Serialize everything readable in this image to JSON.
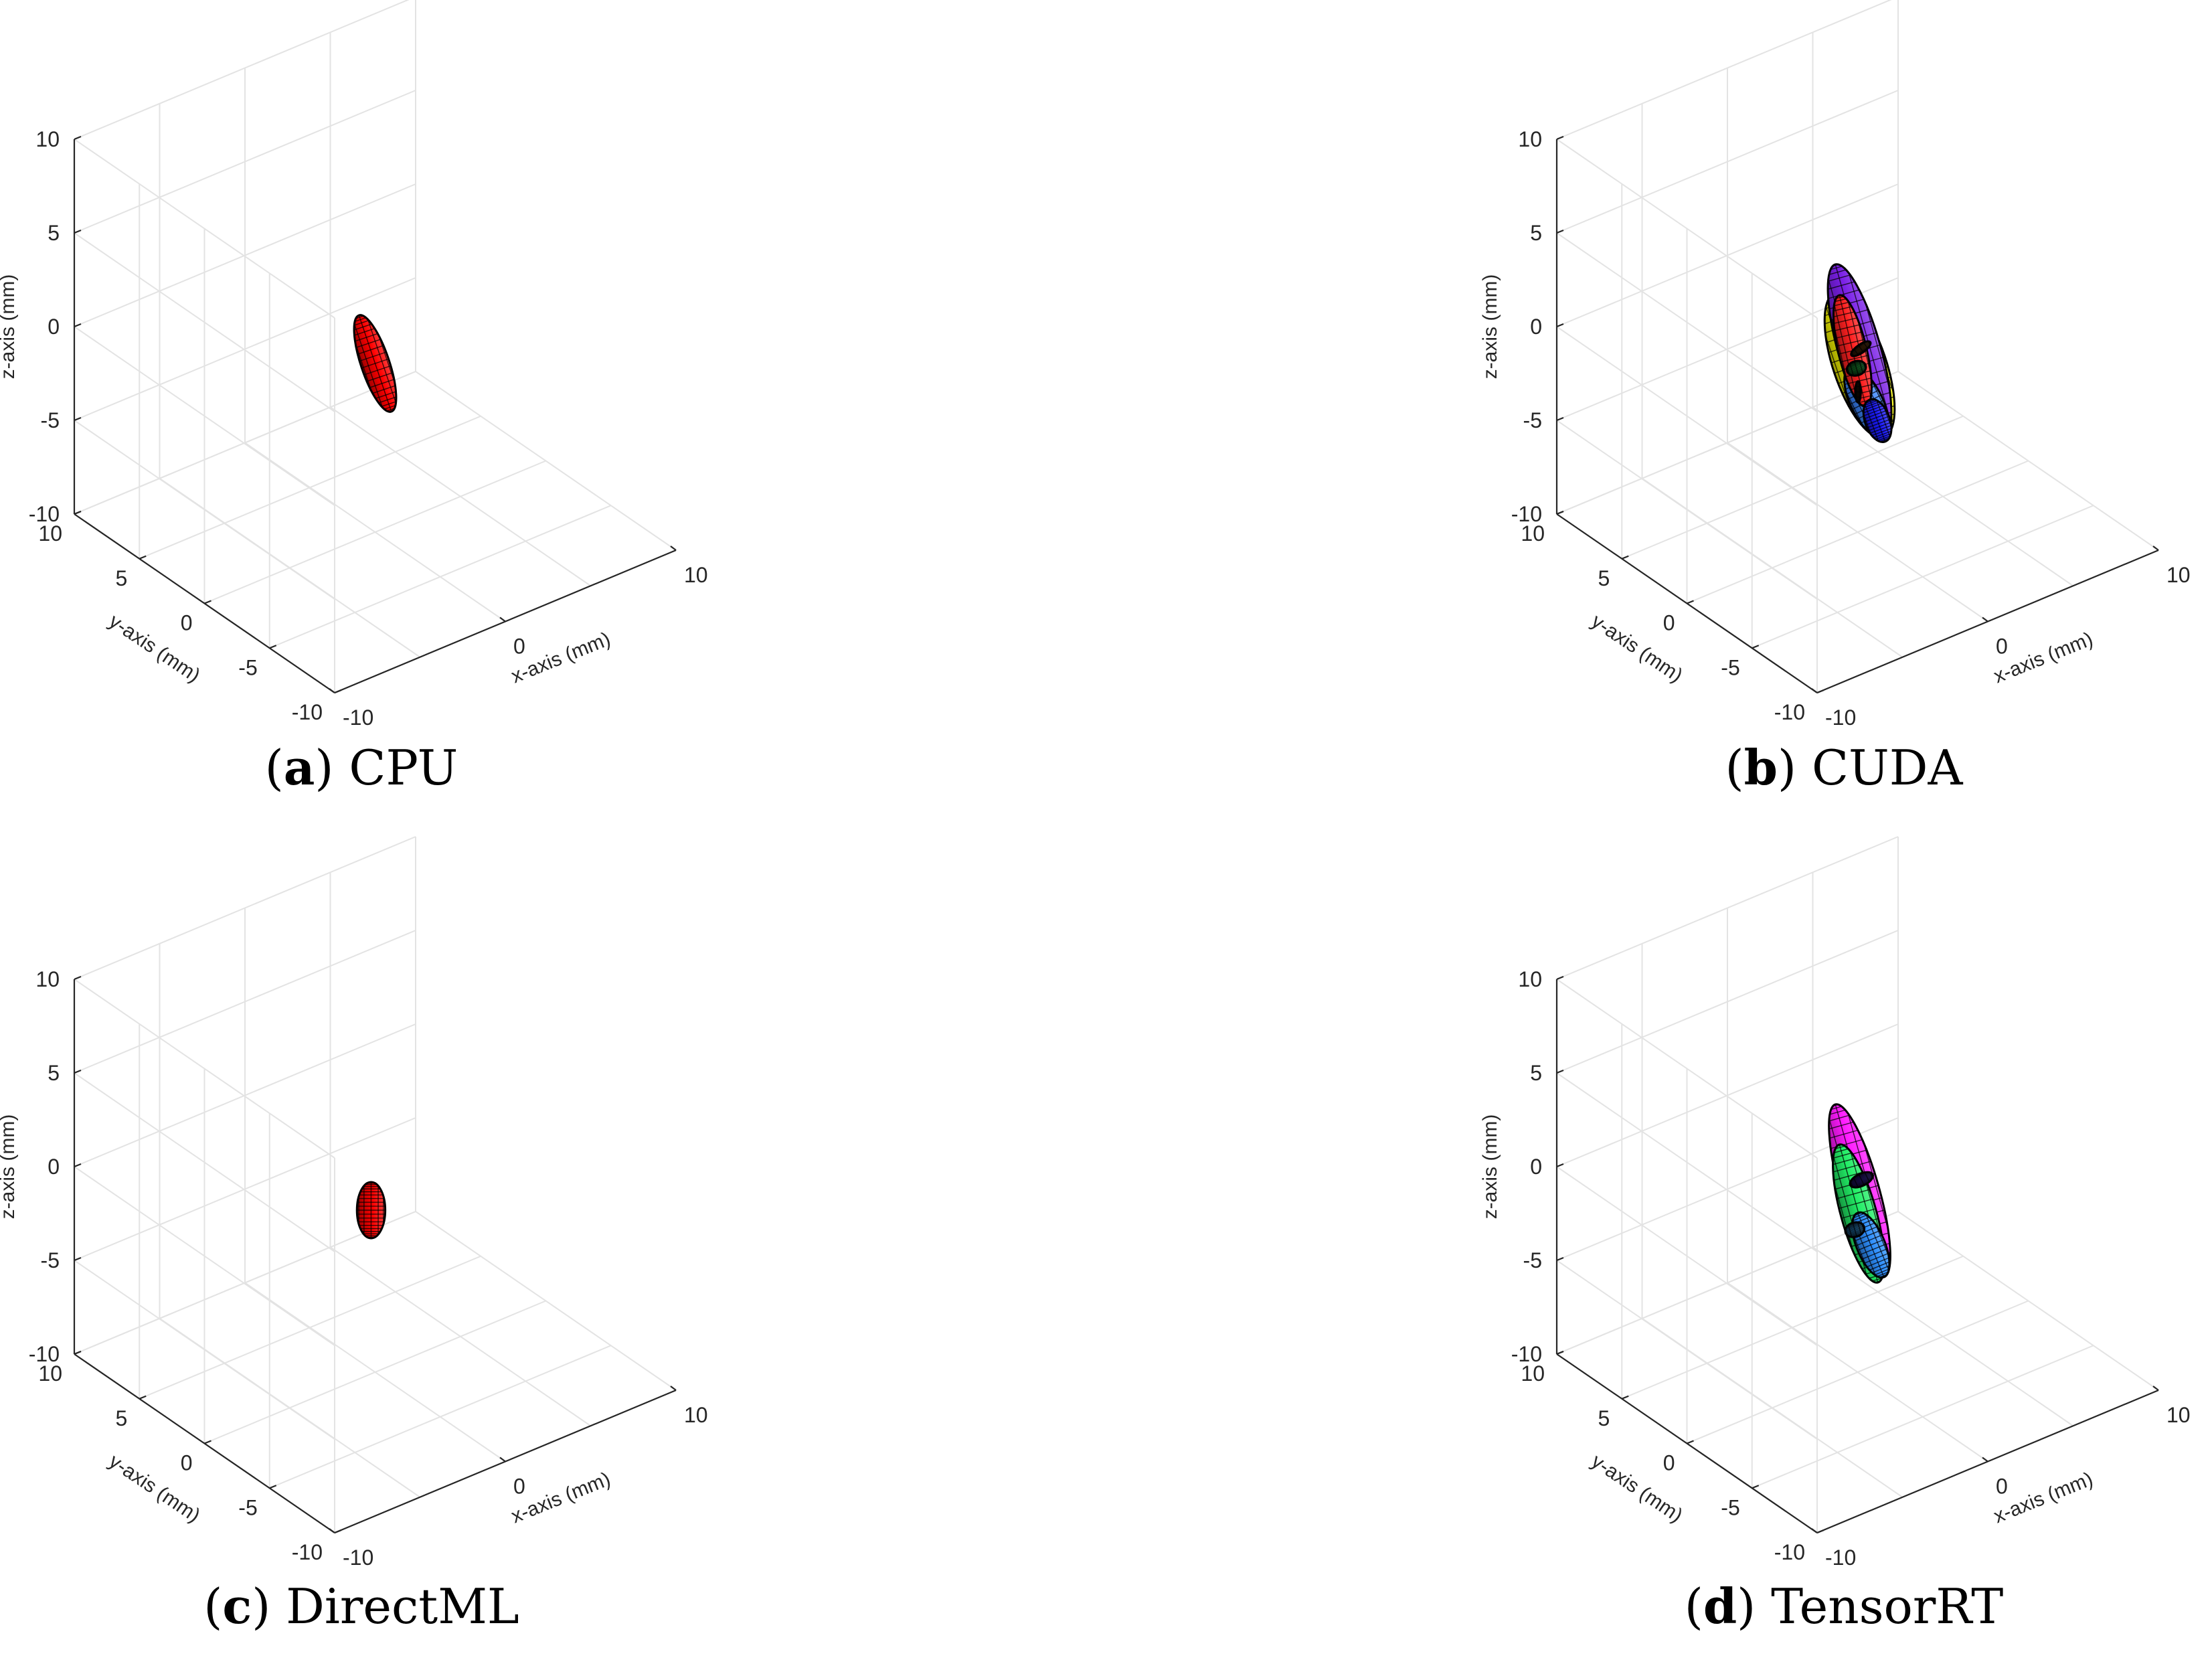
{
  "chart_data": [
    {
      "type": "ellipsoid-3d",
      "letter": "a",
      "title": "CPU",
      "xlabel": "x-axis (mm)",
      "ylabel": "y-axis (mm)",
      "zlabel": "z-axis (mm)",
      "xlim": [
        -10,
        10
      ],
      "ylim": [
        -10,
        10
      ],
      "zlim": [
        -10,
        10
      ],
      "xticks": [
        "-10",
        "0",
        "10"
      ],
      "yticks": [
        "-10",
        "-5",
        "0",
        "5",
        "10"
      ],
      "zticks": [
        "-10",
        "-5",
        "0",
        "5",
        "10"
      ],
      "grid": true,
      "ellipsoids": [
        {
          "color": "#ff0000",
          "start": [
            -4,
            -4,
            5
          ],
          "end": [
            4,
            4,
            -7
          ],
          "width_mm": 1.6
        }
      ]
    },
    {
      "type": "ellipsoid-3d",
      "letter": "b",
      "title": "CUDA",
      "xlabel": "x-axis (mm)",
      "ylabel": "y-axis (mm)",
      "zlabel": "z-axis (mm)",
      "xlim": [
        -10,
        10
      ],
      "ylim": [
        -10,
        10
      ],
      "zlim": [
        -10,
        10
      ],
      "xticks": [
        "-10",
        "0",
        "10"
      ],
      "yticks": [
        "-10",
        "-5",
        "0",
        "5",
        "10"
      ],
      "zticks": [
        "-10",
        "-5",
        "0",
        "5",
        "10"
      ],
      "grid": true,
      "ellipsoids": [
        {
          "color": "#ffff00",
          "start": [
            -5.5,
            -5.5,
            7.5
          ],
          "end": [
            6.5,
            6.5,
            -10.5
          ],
          "width_mm": 3.0
        },
        {
          "color": "#7a1fe6",
          "start": [
            -5.5,
            -5.5,
            9
          ],
          "end": [
            6.5,
            6.5,
            -10.5
          ],
          "width_mm": 2.4
        },
        {
          "color": "#3a86ff",
          "start": [
            -2,
            -2,
            0.5
          ],
          "end": [
            6.5,
            6.5,
            -10.5
          ],
          "width_mm": 1.8
        },
        {
          "color": "#ff2020",
          "start": [
            -4.5,
            -4.5,
            6.5
          ],
          "end": [
            2,
            2,
            -5
          ],
          "width_mm": 1.6
        },
        {
          "color": "#1a1aff",
          "start": [
            3,
            3,
            -5.5
          ],
          "end": [
            6.8,
            6.8,
            -11
          ],
          "width_mm": 1.4
        },
        {
          "color": "#22cc44",
          "start": [
            -0.8,
            -0.8,
            -0.2
          ],
          "end": [
            0.2,
            0.2,
            -1.8
          ],
          "width_mm": 1.1
        },
        {
          "color": "#ff8c1a",
          "start": [
            0.2,
            0.2,
            -0.2
          ],
          "end": [
            1.4,
            1.4,
            -1.6
          ],
          "width_mm": 1.3
        },
        {
          "color": "#e67300",
          "start": [
            -0.6,
            -0.6,
            -2
          ],
          "end": [
            0.8,
            0.8,
            -3.2
          ],
          "width_mm": 1.2
        }
      ]
    },
    {
      "type": "ellipsoid-3d",
      "letter": "c",
      "title": "DirectML",
      "xlabel": "x-axis (mm)",
      "ylabel": "y-axis (mm)",
      "zlabel": "z-axis (mm)",
      "xlim": [
        -10,
        10
      ],
      "ylim": [
        -10,
        10
      ],
      "zlim": [
        -10,
        10
      ],
      "xticks": [
        "-10",
        "0",
        "10"
      ],
      "yticks": [
        "-10",
        "-5",
        "0",
        "5",
        "10"
      ],
      "zticks": [
        "-10",
        "-5",
        "0",
        "5",
        "10"
      ],
      "grid": true,
      "ellipsoids": [
        {
          "color": "#ff0000",
          "start": [
            -1,
            -1,
            1
          ],
          "end": [
            -1,
            -1,
            -2
          ],
          "width_mm": 1.6
        }
      ]
    },
    {
      "type": "ellipsoid-3d",
      "letter": "d",
      "title": "TensorRT",
      "xlabel": "x-axis (mm)",
      "ylabel": "y-axis (mm)",
      "zlabel": "z-axis (mm)",
      "xlim": [
        -10,
        10
      ],
      "ylim": [
        -10,
        10
      ],
      "zlim": [
        -10,
        10
      ],
      "xticks": [
        "-10",
        "0",
        "10"
      ],
      "yticks": [
        "-10",
        "-5",
        "0",
        "5",
        "10"
      ],
      "zticks": [
        "-10",
        "-5",
        "0",
        "5",
        "10"
      ],
      "grid": true,
      "ellipsoids": [
        {
          "color": "#ff1aff",
          "start": [
            -5.5,
            -5.5,
            9
          ],
          "end": [
            6.5,
            6.5,
            -10.5
          ],
          "width_mm": 2.2
        },
        {
          "color": "#22ee66",
          "start": [
            -4.5,
            -4.5,
            6
          ],
          "end": [
            5,
            5,
            -9.5
          ],
          "width_mm": 2.0
        },
        {
          "color": "#2e8fff",
          "start": [
            0,
            0,
            -1.5
          ],
          "end": [
            6.5,
            6.5,
            -10.5
          ],
          "width_mm": 1.6
        },
        {
          "color": "#5533ff",
          "start": [
            0.3,
            0.3,
            0.3
          ],
          "end": [
            1.6,
            1.6,
            -1.4
          ],
          "width_mm": 1.4
        },
        {
          "color": "#33aaff",
          "start": [
            -1.2,
            -1.2,
            -1
          ],
          "end": [
            -0.2,
            -0.2,
            -2.6
          ],
          "width_mm": 1.1
        }
      ]
    }
  ]
}
